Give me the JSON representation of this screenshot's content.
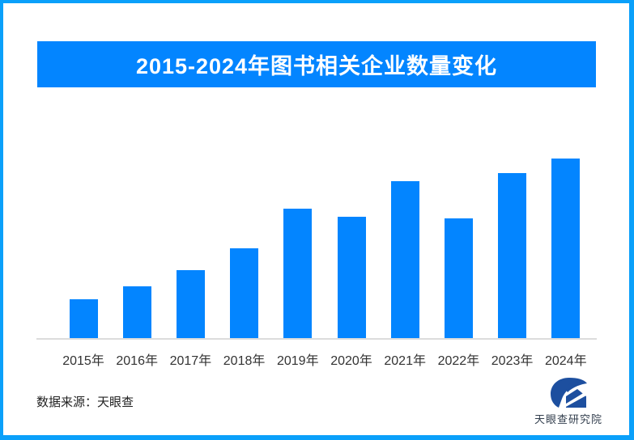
{
  "frame": {
    "border_color": "#0AA0FA"
  },
  "banner": {
    "title": "2015-2024年图书相关企业数量变化",
    "bg_color": "#0385FF",
    "text_color": "#FFFFFF"
  },
  "chart_data": {
    "type": "bar",
    "title": "2015-2024年图书相关企业数量变化",
    "categories": [
      "2015年",
      "2016年",
      "2017年",
      "2018年",
      "2019年",
      "2020年",
      "2021年",
      "2022年",
      "2023年",
      "2024年"
    ],
    "values": [
      21.6,
      28.8,
      38.0,
      49.9,
      72.0,
      67.5,
      87.6,
      66.7,
      92.1,
      100
    ],
    "value_scale": "relative index, 2024 = 100 (estimated from bar heights; no y-axis shown)",
    "bar_color": "#0385FF",
    "xlabel": "",
    "ylabel": "",
    "ylim": [
      0,
      100
    ],
    "grid": false,
    "legend": false,
    "axis_line_color": "#DCDCDC"
  },
  "footer": {
    "source_label": "数据来源：天眼查"
  },
  "logo": {
    "text": "天眼查研究院",
    "icon": "tianyancha-logo-icon",
    "icon_color": "#1D4F9F"
  }
}
